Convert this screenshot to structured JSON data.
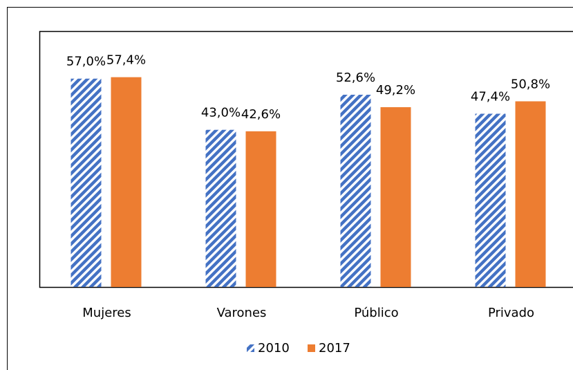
{
  "chart_data": {
    "type": "bar",
    "categories": [
      "Mujeres",
      "Varones",
      "Público",
      "Privado"
    ],
    "series": [
      {
        "name": "2010",
        "color": "#4472c4",
        "hatch": true,
        "values": [
          57.0,
          43.0,
          52.6,
          47.4
        ],
        "value_labels": [
          "57,0%",
          "43,0%",
          "52,6%",
          "47,4%"
        ]
      },
      {
        "name": "2017",
        "color": "#ed7d31",
        "hatch": false,
        "values": [
          57.4,
          42.6,
          49.2,
          50.8
        ],
        "value_labels": [
          "57,4%",
          "42,6%",
          "49,2%",
          "50,8%"
        ]
      }
    ],
    "ylim": [
      0,
      70
    ],
    "grid": false,
    "legend": "bottom"
  }
}
